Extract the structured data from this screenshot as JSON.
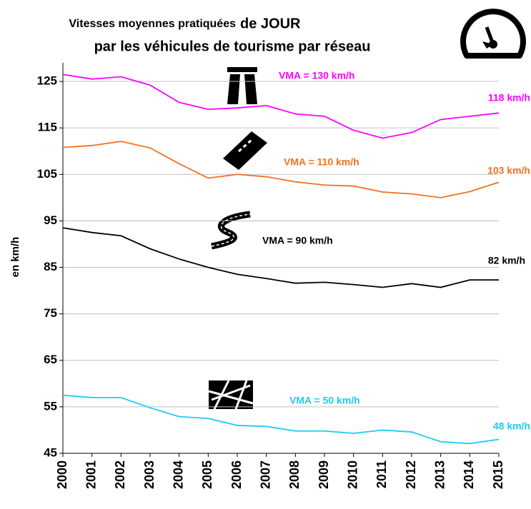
{
  "chart_data": {
    "type": "line",
    "title": [
      "Vitesses moyennes pratiquées",
      "de JOUR",
      "par les véhicules de tourisme par réseau"
    ],
    "y_label": "en km/h",
    "x": [
      2000,
      2001,
      2002,
      2003,
      2004,
      2005,
      2006,
      2007,
      2008,
      2009,
      2010,
      2011,
      2012,
      2013,
      2014,
      2015
    ],
    "xlim": [
      2000,
      2015
    ],
    "xticks": [
      2000,
      2001,
      2002,
      2003,
      2004,
      2005,
      2006,
      2007,
      2008,
      2009,
      2010,
      2011,
      2012,
      2013,
      2014,
      2015
    ],
    "ylim": [
      45,
      129
    ],
    "yticks": [
      45,
      55,
      65,
      75,
      85,
      95,
      105,
      115,
      125
    ],
    "grid": true,
    "series": [
      {
        "color": "#ff00ff",
        "annotation": "VMA = 130 km/h",
        "end_label": "118 km/h",
        "values": [
          126.5,
          125.5,
          126,
          124.2,
          120.5,
          119,
          119.3,
          119.8,
          118,
          117.5,
          114.5,
          112.8,
          114,
          116.8,
          117.5,
          118.2
        ]
      },
      {
        "color": "#f37021",
        "annotation": "VMA = 110 km/h",
        "end_label": "103 km/h",
        "values": [
          110.8,
          111.2,
          112.1,
          110.7,
          107.3,
          104.2,
          105,
          104.5,
          103.4,
          102.7,
          102.5,
          101.2,
          100.8,
          100,
          101.3,
          103.3
        ]
      },
      {
        "color": "#000000",
        "annotation": "VMA = 90 km/h",
        "end_label": "82 km/h",
        "values": [
          93.5,
          92.5,
          91.8,
          89,
          86.8,
          85,
          83.5,
          82.6,
          81.6,
          81.8,
          81.3,
          80.7,
          81.5,
          80.7,
          82.3,
          82.3
        ]
      },
      {
        "color": "#1ecbf0",
        "annotation": "VMA = 50 km/h",
        "end_label": "48 km/h",
        "values": [
          57.5,
          57,
          57,
          54.8,
          52.9,
          52.5,
          51,
          50.8,
          49.8,
          49.8,
          49.3,
          50,
          49.6,
          47.5,
          47.1,
          48
        ]
      }
    ]
  }
}
